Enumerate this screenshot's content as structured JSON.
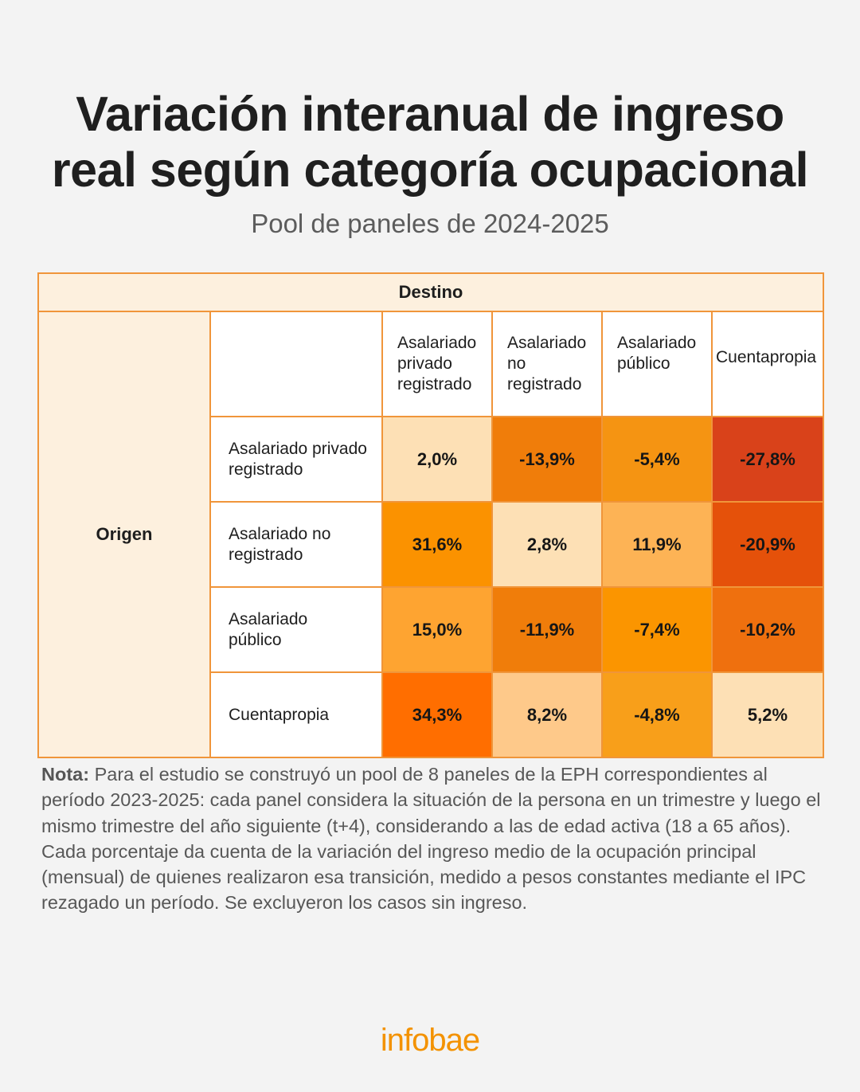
{
  "title_line1": "Variación interanual de ingreso",
  "title_line2": "real según categoría ocupacional",
  "subtitle": "Pool de paneles de 2024-2025",
  "destino_label": "Destino",
  "origen_label": "Origen",
  "columns": [
    [
      "Asalariado",
      "privado",
      "registrado"
    ],
    [
      "Asalariado",
      "no",
      "registrado"
    ],
    [
      "Asalariado",
      "público"
    ],
    [
      "Cuentapropia"
    ]
  ],
  "rows": [
    [
      "Asalariado privado",
      "registrado"
    ],
    [
      "Asalariado no",
      "registrado"
    ],
    [
      "Asalariado",
      "público"
    ],
    [
      "Cuentapropia"
    ]
  ],
  "chart_data": {
    "type": "heatmap",
    "title": "Variación interanual de ingreso real según categoría ocupacional",
    "subtitle": "Pool de paneles de 2024-2025",
    "x_axis_label": "Destino",
    "y_axis_label": "Origen",
    "x_categories": [
      "Asalariado privado registrado",
      "Asalariado no registrado",
      "Asalariado público",
      "Cuentapropia"
    ],
    "y_categories": [
      "Asalariado privado registrado",
      "Asalariado no registrado",
      "Asalariado público",
      "Cuentapropia"
    ],
    "values": [
      [
        2.0,
        -13.9,
        -5.4,
        -27.8
      ],
      [
        31.6,
        2.8,
        11.9,
        -20.9
      ],
      [
        15.0,
        -11.9,
        -7.4,
        -10.2
      ],
      [
        34.3,
        8.2,
        -4.8,
        5.2
      ]
    ],
    "labels": [
      [
        "2,0%",
        "-13,9%",
        "-5,4%",
        "-27,8%"
      ],
      [
        "31,6%",
        "2,8%",
        "11,9%",
        "-20,9%"
      ],
      [
        "15,0%",
        "-11,9%",
        "-7,4%",
        "-10,2%"
      ],
      [
        "34,3%",
        "8,2%",
        "-4,8%",
        "5,2%"
      ]
    ],
    "colors": [
      [
        "#fde0b5",
        "#f07d0a",
        "#f59412",
        "#d9421a"
      ],
      [
        "#fb9200",
        "#fde0b5",
        "#fdb355",
        "#e5510a"
      ],
      [
        "#fea431",
        "#f07d0a",
        "#fb9500",
        "#ef700e"
      ],
      [
        "#ff6e00",
        "#fec98a",
        "#f89f1a",
        "#fde0b5"
      ]
    ]
  },
  "note_label": "Nota:",
  "note_text": " Para el estudio se construyó un pool de 8 paneles de la EPH correspondientes al período 2023-2025: cada panel considera la situación de la persona en un trimestre y luego el mismo trimestre del año siguiente (t+4), considerando a las de edad activa (18 a 65 años). Cada porcentaje da cuenta de la variación del ingreso medio de la ocupación principal (mensual) de quienes realizaron esa transición, medido a pesos constantes mediante el IPC rezagado un período. Se excluyeron los casos sin ingreso.",
  "logo": "infobae"
}
